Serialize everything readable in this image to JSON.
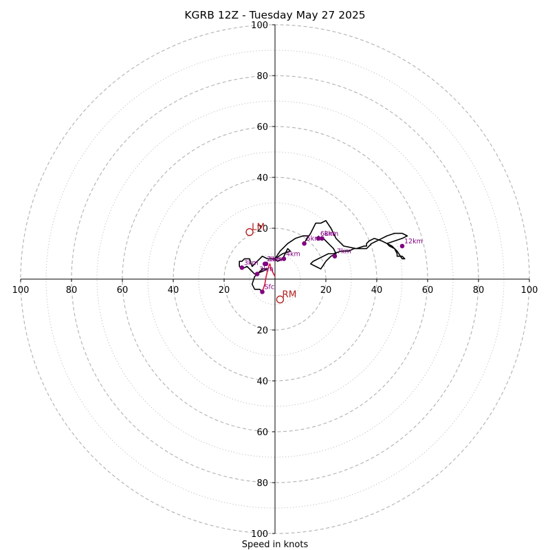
{
  "chart_data": {
    "type": "line",
    "title": "KGRB 12Z - Tuesday May 27 2025",
    "xlabel": "Speed in knots",
    "ylabel": "",
    "xlim": [
      -100,
      100
    ],
    "ylim": [
      -100,
      100
    ],
    "rings_dashed": [
      20,
      40,
      60,
      80,
      100
    ],
    "rings_dotted": [
      10,
      30,
      50,
      70,
      90
    ],
    "x_tick_labels": [
      "100",
      "80",
      "60",
      "40",
      "20",
      "20",
      "40",
      "60",
      "80",
      "100"
    ],
    "y_tick_labels": [
      "100",
      "80",
      "60",
      "40",
      "20",
      "20",
      "40",
      "60",
      "80",
      "100"
    ],
    "hodograph_color": "#000000",
    "low_level_color": "#dc143c",
    "point_color": "#800080",
    "motion_color": "#b22222",
    "low_level_trace": {
      "x": [
        -5,
        -4,
        -3.5,
        -3,
        -2.5,
        -2,
        -1.5,
        -1,
        -0.5,
        0
      ],
      "y": [
        -5,
        -2,
        1,
        3,
        5,
        6,
        4,
        3,
        2,
        1
      ]
    },
    "hodograph": {
      "x": [
        -5,
        -6,
        -7,
        -8,
        -9,
        -8,
        -7,
        -6,
        -5,
        -4,
        -3,
        -5,
        -8,
        -11,
        -13,
        -14,
        -14,
        -13,
        -12,
        -10,
        -9,
        -7,
        -5,
        -3,
        0,
        3,
        6,
        5,
        3,
        1,
        0,
        2,
        5,
        8,
        11,
        13,
        12,
        14,
        16,
        18,
        20,
        22,
        24,
        27,
        32,
        35,
        36,
        36,
        37,
        39,
        42,
        44,
        46,
        47,
        48,
        48,
        50,
        51,
        50,
        48,
        47,
        45,
        44,
        47,
        50,
        52,
        50,
        47,
        44,
        42,
        40,
        38,
        37,
        36,
        35,
        33,
        31,
        29,
        26,
        23,
        21,
        19,
        17,
        15,
        14,
        16,
        18,
        20,
        22,
        24,
        23,
        22,
        21,
        20,
        19,
        18,
        17
      ],
      "y": [
        -5,
        -4,
        -4,
        -4,
        -2,
        1,
        2,
        3,
        4,
        4,
        4,
        3,
        2,
        5,
        4,
        5,
        7,
        7,
        8,
        8,
        5,
        7,
        9,
        8,
        8,
        10,
        11,
        12,
        8,
        7,
        8,
        11,
        14,
        16,
        17,
        17,
        15,
        18,
        22,
        22,
        23,
        20,
        16,
        13,
        12,
        13,
        13,
        14,
        15,
        16,
        15,
        14,
        13,
        12,
        10,
        9,
        9,
        8,
        8,
        11,
        12,
        13,
        14,
        15,
        16,
        17,
        18,
        18,
        17,
        16,
        15,
        14,
        13,
        12,
        12,
        12,
        12,
        11,
        11,
        10,
        10,
        9,
        8,
        7,
        6,
        5,
        4,
        7,
        9,
        10,
        12,
        13,
        14,
        15,
        16,
        16,
        17
      ]
    },
    "height_points": [
      {
        "label": "Sfc",
        "x": -5,
        "y": -5
      },
      {
        "label": "1km",
        "x": -3.5,
        "y": 6
      },
      {
        "label": "2km",
        "x": -4,
        "y": 6
      },
      {
        "label": "3km",
        "x": -7,
        "y": 2
      },
      {
        "label": "3km",
        "x": -13,
        "y": 4.5
      },
      {
        "label": "4km",
        "x": 3.5,
        "y": 8
      },
      {
        "label": "5km",
        "x": 11.5,
        "y": 14
      },
      {
        "label": "6km",
        "x": 17,
        "y": 16
      },
      {
        "label": "8km",
        "x": 18.5,
        "y": 16
      },
      {
        "label": "7km",
        "x": 23.5,
        "y": 9
      },
      {
        "label": "12km",
        "x": 50,
        "y": 13
      }
    ],
    "storm_motion": [
      {
        "label": "LM",
        "x": -10,
        "y": 18.5
      },
      {
        "label": "RM",
        "x": 2,
        "y": -8
      }
    ]
  }
}
